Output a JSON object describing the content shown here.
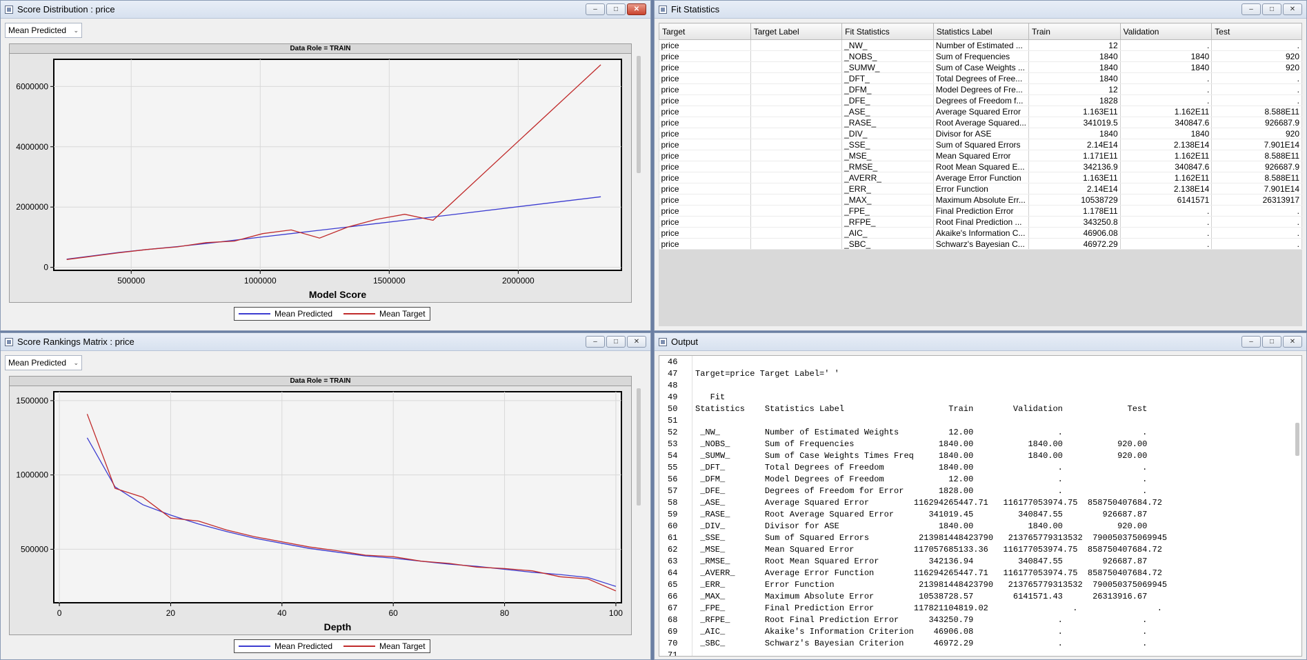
{
  "score_distribution": {
    "title": "Score Distribution : price",
    "dropdown": "Mean Predicted",
    "role_band": "Data Role = TRAIN",
    "chart_data": {
      "type": "line",
      "xlabel": "Model Score",
      "ylabel": "",
      "xlim": [
        200000,
        2400000
      ],
      "ylim": [
        -100000,
        6900000
      ],
      "xticks": [
        500000,
        1000000,
        1500000,
        2000000
      ],
      "yticks": [
        0,
        2000000,
        4000000,
        6000000
      ],
      "xtick_labels": [
        "500000",
        "1000000",
        "1500000",
        "2000000"
      ],
      "ytick_labels": [
        "0",
        "2000000",
        "4000000",
        "6000000"
      ],
      "grid": true,
      "legend": "bottom",
      "series": [
        {
          "name": "Mean Predicted",
          "color": "#3b3bd0",
          "x": [
            250000,
            350000,
            450000,
            560000,
            680000,
            790000,
            900000,
            1010000,
            1120000,
            1230000,
            1340000,
            1450000,
            1560000,
            1670000,
            2320000
          ],
          "y": [
            270000,
            380000,
            490000,
            590000,
            690000,
            790000,
            900000,
            1010000,
            1120000,
            1230000,
            1340000,
            1450000,
            1560000,
            1670000,
            2340000
          ]
        },
        {
          "name": "Mean Target",
          "color": "#c02a2a",
          "x": [
            250000,
            350000,
            450000,
            560000,
            680000,
            790000,
            900000,
            1010000,
            1120000,
            1230000,
            1340000,
            1450000,
            1560000,
            1670000,
            2320000
          ],
          "y": [
            260000,
            370000,
            480000,
            590000,
            680000,
            820000,
            870000,
            1120000,
            1240000,
            970000,
            1340000,
            1590000,
            1760000,
            1560000,
            6720000
          ]
        }
      ]
    }
  },
  "score_rankings": {
    "title": "Score Rankings Matrix : price",
    "dropdown": "Mean Predicted",
    "role_band": "Data Role = TRAIN",
    "chart_data": {
      "type": "line",
      "xlabel": "Depth",
      "ylabel": "",
      "xlim": [
        -1,
        101
      ],
      "ylim": [
        140000,
        1560000
      ],
      "xticks": [
        0,
        20,
        40,
        60,
        80,
        100
      ],
      "yticks": [
        500000,
        1000000,
        1500000
      ],
      "xtick_labels": [
        "0",
        "20",
        "40",
        "60",
        "80",
        "100"
      ],
      "ytick_labels": [
        "500000",
        "1000000",
        "1500000"
      ],
      "grid": true,
      "legend": "bottom",
      "series": [
        {
          "name": "Mean Predicted",
          "color": "#3b3bd0",
          "x": [
            5,
            10,
            15,
            20,
            25,
            30,
            35,
            40,
            45,
            50,
            55,
            60,
            65,
            70,
            75,
            80,
            85,
            90,
            95,
            100
          ],
          "y": [
            1250000,
            920000,
            800000,
            730000,
            670000,
            620000,
            575000,
            540000,
            505000,
            480000,
            455000,
            440000,
            420000,
            400000,
            385000,
            365000,
            345000,
            330000,
            310000,
            250000
          ]
        },
        {
          "name": "Mean Target",
          "color": "#c02a2a",
          "x": [
            5,
            10,
            15,
            20,
            25,
            30,
            35,
            40,
            45,
            50,
            55,
            60,
            65,
            70,
            75,
            80,
            85,
            90,
            95,
            100
          ],
          "y": [
            1410000,
            910000,
            850000,
            710000,
            690000,
            630000,
            585000,
            550000,
            515000,
            490000,
            460000,
            450000,
            420000,
            405000,
            380000,
            370000,
            355000,
            315000,
            300000,
            220000
          ]
        }
      ]
    }
  },
  "fit_statistics": {
    "title": "Fit Statistics",
    "columns": [
      "Target",
      "Target Label",
      "Fit Statistics",
      "Statistics Label",
      "Train",
      "Validation",
      "Test"
    ],
    "rows": [
      [
        "price",
        "",
        "_NW_",
        "Number of Estimated ...",
        "12",
        ".",
        "."
      ],
      [
        "price",
        "",
        "_NOBS_",
        "Sum of Frequencies",
        "1840",
        "1840",
        "920"
      ],
      [
        "price",
        "",
        "_SUMW_",
        "Sum of Case Weights ...",
        "1840",
        "1840",
        "920"
      ],
      [
        "price",
        "",
        "_DFT_",
        "Total Degrees of Free...",
        "1840",
        ".",
        "."
      ],
      [
        "price",
        "",
        "_DFM_",
        "Model Degrees of Fre...",
        "12",
        ".",
        "."
      ],
      [
        "price",
        "",
        "_DFE_",
        "Degrees of Freedom f...",
        "1828",
        ".",
        "."
      ],
      [
        "price",
        "",
        "_ASE_",
        "Average Squared Error",
        "1.163E11",
        "1.162E11",
        "8.588E11"
      ],
      [
        "price",
        "",
        "_RASE_",
        "Root Average Squared...",
        "341019.5",
        "340847.6",
        "926687.9"
      ],
      [
        "price",
        "",
        "_DIV_",
        "Divisor for ASE",
        "1840",
        "1840",
        "920"
      ],
      [
        "price",
        "",
        "_SSE_",
        "Sum of Squared Errors",
        "2.14E14",
        "2.138E14",
        "7.901E14"
      ],
      [
        "price",
        "",
        "_MSE_",
        "Mean Squared Error",
        "1.171E11",
        "1.162E11",
        "8.588E11"
      ],
      [
        "price",
        "",
        "_RMSE_",
        "Root Mean Squared E...",
        "342136.9",
        "340847.6",
        "926687.9"
      ],
      [
        "price",
        "",
        "_AVERR_",
        "Average Error Function",
        "1.163E11",
        "1.162E11",
        "8.588E11"
      ],
      [
        "price",
        "",
        "_ERR_",
        "Error Function",
        "2.14E14",
        "2.138E14",
        "7.901E14"
      ],
      [
        "price",
        "",
        "_MAX_",
        "Maximum Absolute Err...",
        "10538729",
        "6141571",
        "26313917"
      ],
      [
        "price",
        "",
        "_FPE_",
        "Final Prediction Error",
        "1.178E11",
        ".",
        "."
      ],
      [
        "price",
        "",
        "_RFPE_",
        "Root Final Prediction ...",
        "343250.8",
        ".",
        "."
      ],
      [
        "price",
        "",
        "_AIC_",
        "Akaike's Information C...",
        "46906.08",
        ".",
        "."
      ],
      [
        "price",
        "",
        "_SBC_",
        "Schwarz's Bayesian C...",
        "46972.29",
        ".",
        "."
      ]
    ]
  },
  "output": {
    "title": "Output",
    "lines": [
      {
        "n": "46",
        "t": ""
      },
      {
        "n": "47",
        "t": "Target=price Target Label=' '"
      },
      {
        "n": "48",
        "t": ""
      },
      {
        "n": "49",
        "t": "   Fit"
      },
      {
        "n": "50",
        "t": "Statistics    Statistics Label                     Train        Validation             Test"
      },
      {
        "n": "51",
        "t": ""
      },
      {
        "n": "52",
        "t": " _NW_         Number of Estimated Weights          12.00                 .                ."
      },
      {
        "n": "53",
        "t": " _NOBS_       Sum of Frequencies                 1840.00           1840.00           920.00"
      },
      {
        "n": "54",
        "t": " _SUMW_       Sum of Case Weights Times Freq     1840.00           1840.00           920.00"
      },
      {
        "n": "55",
        "t": " _DFT_        Total Degrees of Freedom           1840.00                 .                ."
      },
      {
        "n": "56",
        "t": " _DFM_        Model Degrees of Freedom             12.00                 .                ."
      },
      {
        "n": "57",
        "t": " _DFE_        Degrees of Freedom for Error       1828.00                 .                ."
      },
      {
        "n": "58",
        "t": " _ASE_        Average Squared Error         116294265447.71   116177053974.75  858750407684.72"
      },
      {
        "n": "59",
        "t": " _RASE_       Root Average Squared Error       341019.45         340847.55        926687.87"
      },
      {
        "n": "60",
        "t": " _DIV_        Divisor for ASE                    1840.00           1840.00           920.00"
      },
      {
        "n": "61",
        "t": " _SSE_        Sum of Squared Errors          213981448423790   213765779313532  790050375069945"
      },
      {
        "n": "62",
        "t": " _MSE_        Mean Squared Error            117057685133.36   116177053974.75  858750407684.72"
      },
      {
        "n": "63",
        "t": " _RMSE_       Root Mean Squared Error          342136.94         340847.55        926687.87"
      },
      {
        "n": "64",
        "t": " _AVERR_      Average Error Function        116294265447.71   116177053974.75  858750407684.72"
      },
      {
        "n": "65",
        "t": " _ERR_        Error Function                 213981448423790   213765779313532  790050375069945"
      },
      {
        "n": "66",
        "t": " _MAX_        Maximum Absolute Error         10538728.57        6141571.43      26313916.67"
      },
      {
        "n": "67",
        "t": " _FPE_        Final Prediction Error        117821104819.02                 .                ."
      },
      {
        "n": "68",
        "t": " _RFPE_       Root Final Prediction Error      343250.79                 .                ."
      },
      {
        "n": "69",
        "t": " _AIC_        Akaike's Information Criterion    46906.08                 .                ."
      },
      {
        "n": "70",
        "t": " _SBC_        Schwarz's Bayesian Criterion      46972.29                 .                ."
      },
      {
        "n": "71",
        "t": ""
      }
    ]
  },
  "window_buttons": {
    "minimize": "–",
    "maximize": "□",
    "close": "✕"
  },
  "dropdown_caret": "⌄"
}
